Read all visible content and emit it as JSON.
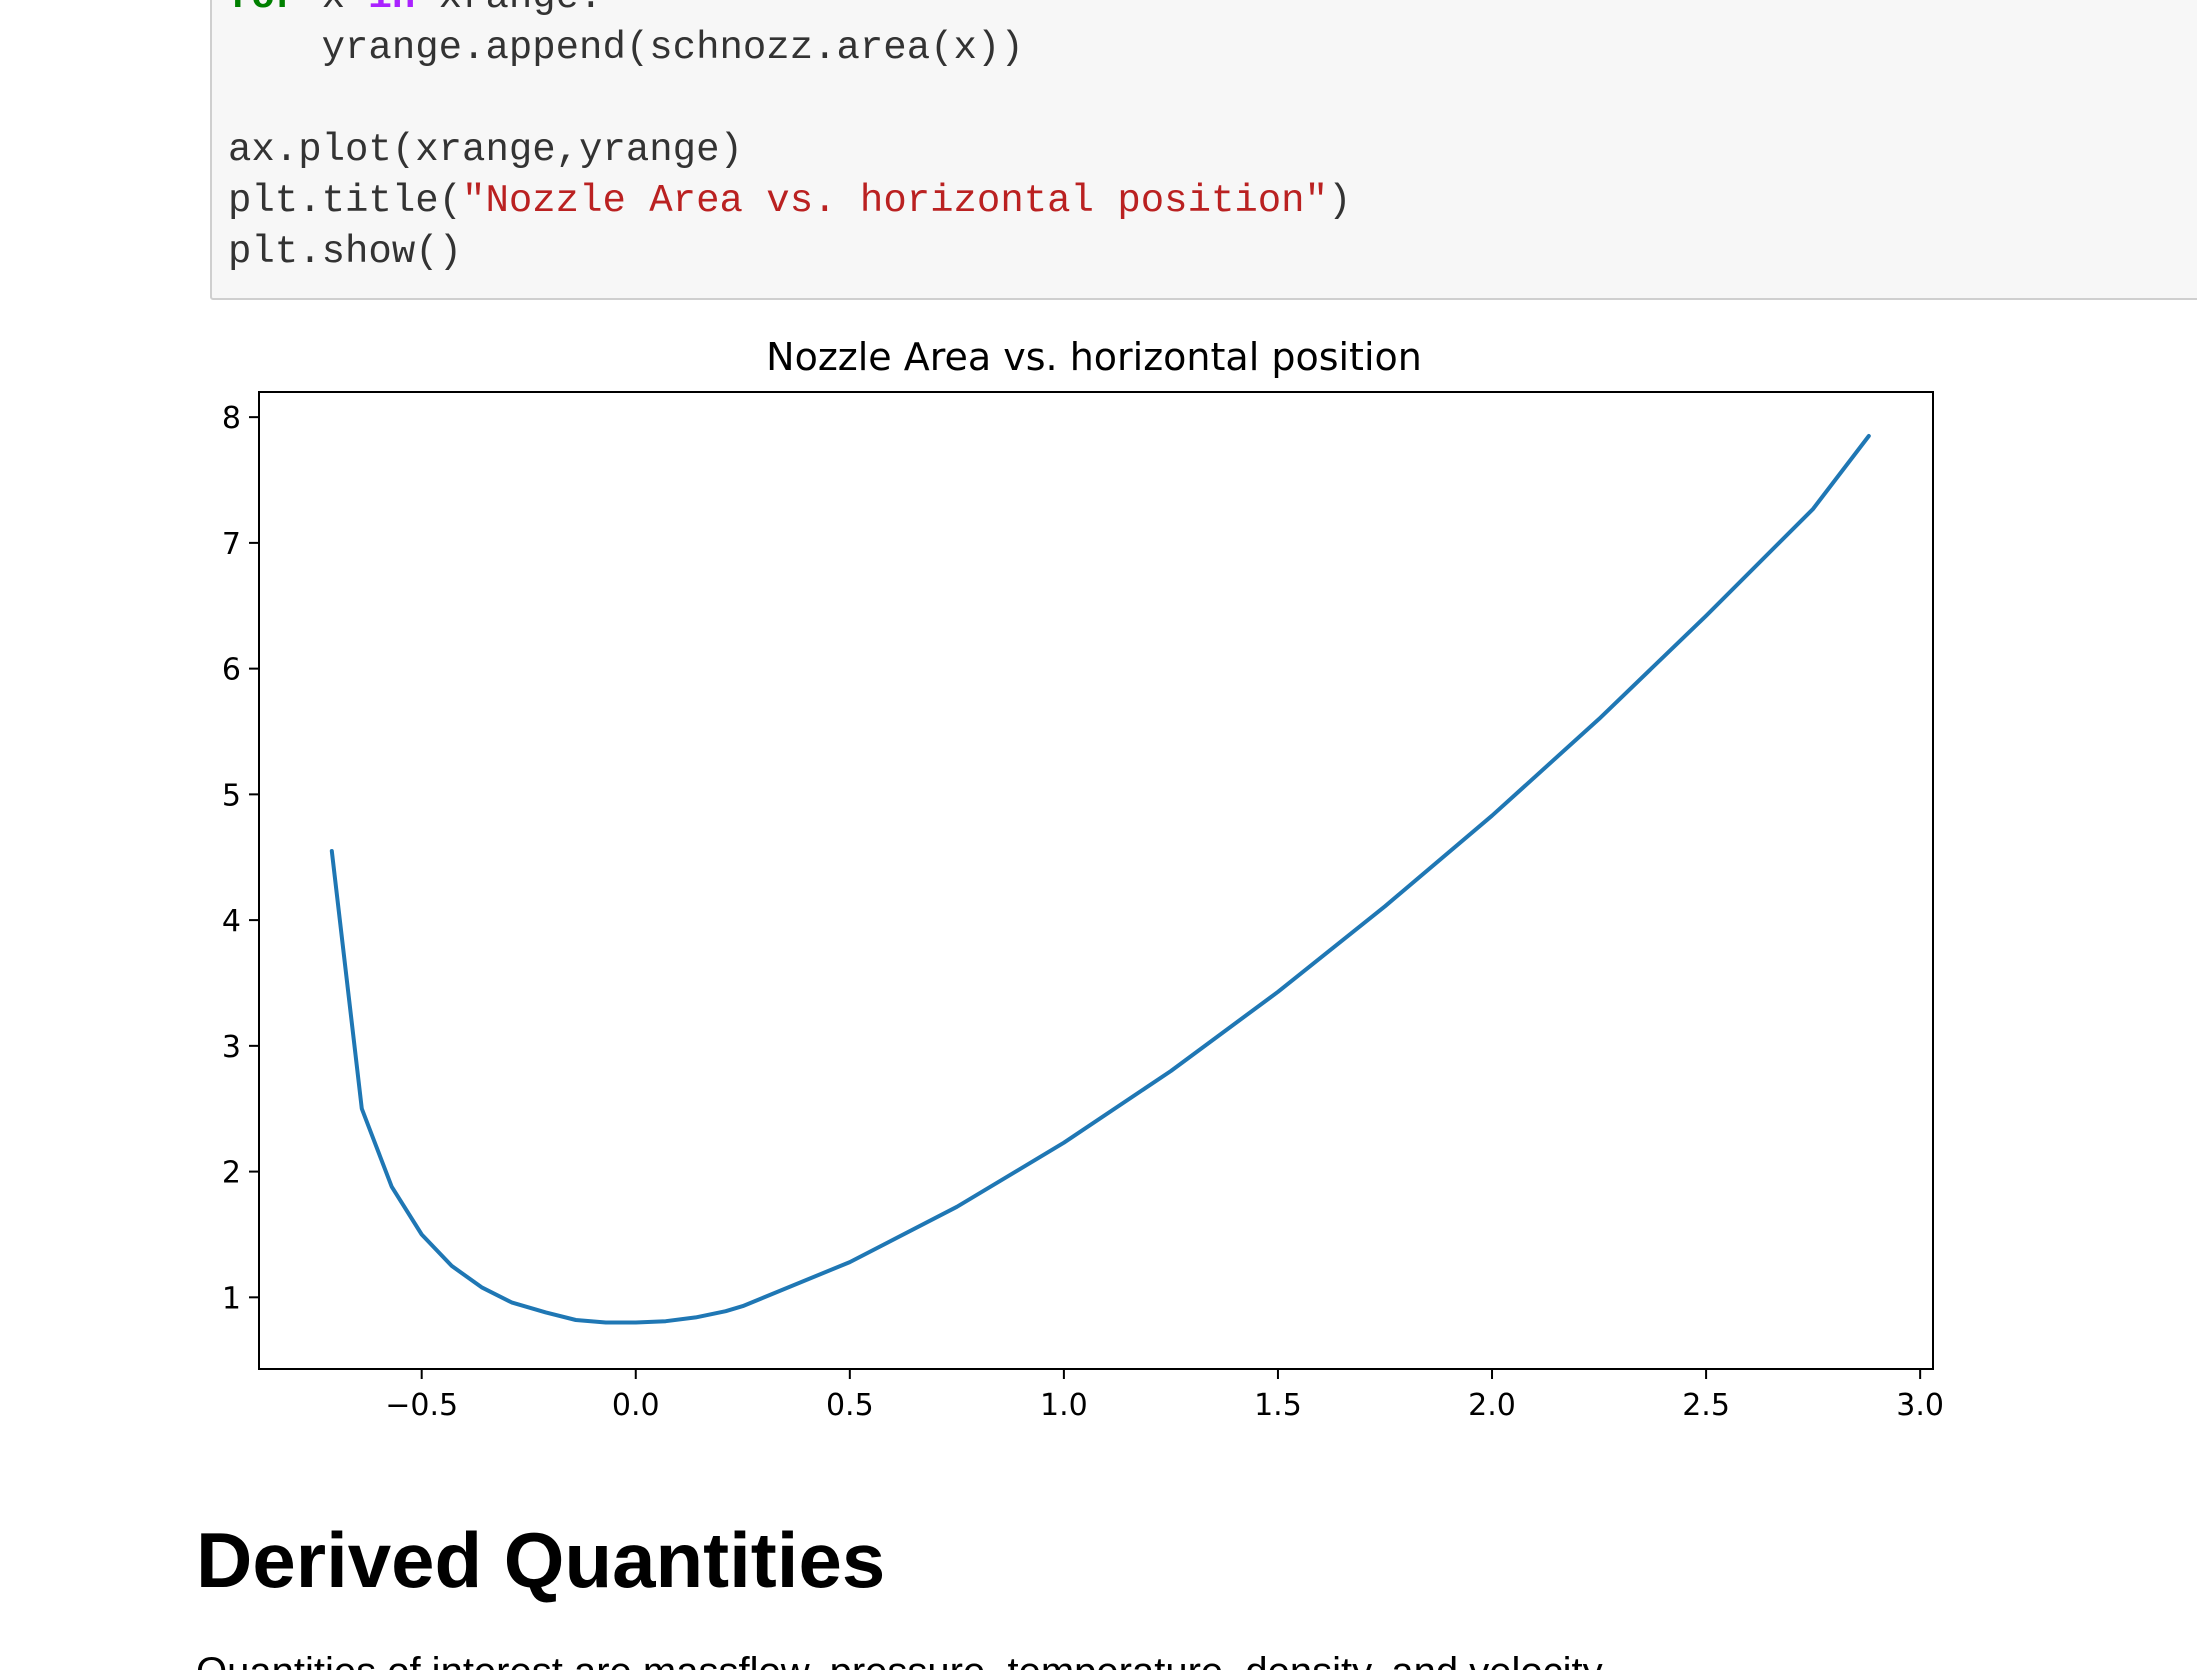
{
  "code_cell": {
    "lines": [
      [
        {
          "text": "for",
          "style": "kw-green"
        },
        {
          "text": " x ",
          "style": "plain"
        },
        {
          "text": "in",
          "style": "kw-purple"
        },
        {
          "text": " xrange:",
          "style": "plain"
        }
      ],
      [
        {
          "text": "    yrange.append(schnozz.area(x))",
          "style": "plain"
        }
      ],
      [
        {
          "text": "",
          "style": "plain"
        }
      ],
      [
        {
          "text": "ax.plot(xrange,yrange)",
          "style": "plain"
        }
      ],
      [
        {
          "text": "plt.title(",
          "style": "plain"
        },
        {
          "text": "\"Nozzle Area vs. horizontal position\"",
          "style": "str"
        },
        {
          "text": ")",
          "style": "plain"
        }
      ],
      [
        {
          "text": "plt.show()",
          "style": "plain"
        }
      ]
    ]
  },
  "chart_data": {
    "type": "line",
    "title": "Nozzle Area vs. horizontal position",
    "xlabel": "",
    "ylabel": "",
    "xlim": [
      -0.88,
      3.03
    ],
    "ylim": [
      0.43,
      8.2
    ],
    "xticks": [
      -0.5,
      0.0,
      0.5,
      1.0,
      1.5,
      2.0,
      2.5,
      3.0
    ],
    "xtick_labels": [
      "−0.5",
      "0.0",
      "0.5",
      "1.0",
      "1.5",
      "2.0",
      "2.5",
      "3.0"
    ],
    "yticks": [
      1,
      2,
      3,
      4,
      5,
      6,
      7,
      8
    ],
    "ytick_labels": [
      "1",
      "2",
      "3",
      "4",
      "5",
      "6",
      "7",
      "8"
    ],
    "grid": false,
    "series": [
      {
        "color": "#1f77b4",
        "x": [
          -0.71,
          -0.64,
          -0.57,
          -0.5,
          -0.43,
          -0.36,
          -0.29,
          -0.21,
          -0.14,
          -0.07,
          0.0,
          0.07,
          0.14,
          0.21,
          0.25,
          0.5,
          0.75,
          1.0,
          1.25,
          1.5,
          1.75,
          2.0,
          2.25,
          2.5,
          2.75,
          2.88
        ],
        "y": [
          4.55,
          2.5,
          1.88,
          1.5,
          1.25,
          1.08,
          0.96,
          0.88,
          0.82,
          0.8,
          0.8,
          0.81,
          0.84,
          0.89,
          0.93,
          1.28,
          1.72,
          2.23,
          2.8,
          3.43,
          4.11,
          4.83,
          5.6,
          6.42,
          7.27,
          7.85
        ]
      }
    ]
  },
  "section": {
    "heading": "Derived Quantities",
    "paragraph": "Quantities of interest are massflow, pressure, temperature, density, and velocity."
  }
}
